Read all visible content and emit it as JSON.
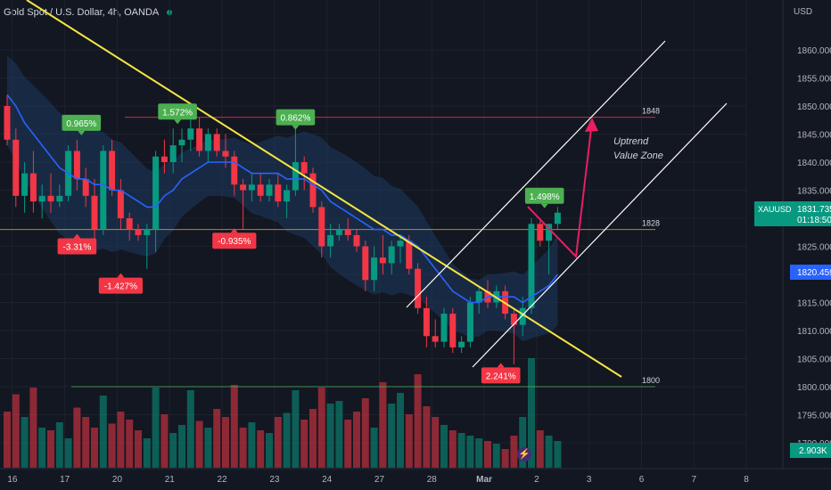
{
  "header": {
    "title": "Gold Spot / U.S. Dollar, 4h, OANDA"
  },
  "colors": {
    "background": "#131722",
    "up": "#089981",
    "down": "#f23645",
    "ma_line": "#2962ff",
    "trendline": "#f5e642",
    "channel": "#ffffff",
    "arrow": "#e91e63",
    "band": "#1e3a5f",
    "grid": "#1e222d",
    "level_orange": "#ff9800",
    "level_red": "#f23645",
    "level_green": "#4caf50"
  },
  "chart_data": {
    "type": "candlestick",
    "title": "Gold Spot / U.S. Dollar, 4h, OANDA",
    "symbol": "XAUUSD",
    "y_axis": {
      "unit": "USD",
      "range": [
        1790,
        1865
      ],
      "ticks": [
        "1860.000",
        "1855.000",
        "1850.000",
        "1845.000",
        "1840.000",
        "1835.000",
        "1830.000",
        "1825.000",
        "1820.000",
        "1815.000",
        "1810.000",
        "1805.000",
        "1800.000",
        "1795.000",
        "1790.000"
      ],
      "tick_values": [
        1860,
        1855,
        1850,
        1845,
        1840,
        1835,
        1830,
        1825,
        1820,
        1815,
        1810,
        1805,
        1800,
        1795,
        1790
      ]
    },
    "x_axis": {
      "range": [
        0,
        148
      ],
      "tick_labels": [
        "16",
        "17",
        "20",
        "21",
        "22",
        "23",
        "24",
        "27",
        "28",
        "Mar",
        "2",
        "3",
        "6",
        "7",
        "8"
      ],
      "tick_positions": [
        0.6,
        6.6,
        12.6,
        18.6,
        24.6,
        30.6,
        36.6,
        42.6,
        48.6,
        54.6,
        60.6,
        66.6,
        72.6,
        78.6,
        84.6
      ]
    },
    "candles": [
      {
        "o": 1850,
        "h": 1852,
        "l": 1843,
        "c": 1844
      },
      {
        "o": 1844,
        "h": 1846,
        "l": 1832,
        "c": 1834
      },
      {
        "o": 1834,
        "h": 1840,
        "l": 1831,
        "c": 1838
      },
      {
        "o": 1838,
        "h": 1842,
        "l": 1831,
        "c": 1833
      },
      {
        "o": 1833,
        "h": 1836,
        "l": 1830,
        "c": 1834
      },
      {
        "o": 1834,
        "h": 1838,
        "l": 1831,
        "c": 1833
      },
      {
        "o": 1833,
        "h": 1836,
        "l": 1832,
        "c": 1834
      },
      {
        "o": 1834,
        "h": 1843,
        "l": 1833,
        "c": 1842
      },
      {
        "o": 1842,
        "h": 1844,
        "l": 1835,
        "c": 1837
      },
      {
        "o": 1837,
        "h": 1839,
        "l": 1832,
        "c": 1834
      },
      {
        "o": 1834,
        "h": 1837,
        "l": 1826,
        "c": 1828
      },
      {
        "o": 1828,
        "h": 1843,
        "l": 1827,
        "c": 1842
      },
      {
        "o": 1842,
        "h": 1844,
        "l": 1834,
        "c": 1835
      },
      {
        "o": 1835,
        "h": 1837,
        "l": 1828,
        "c": 1830
      },
      {
        "o": 1830,
        "h": 1831,
        "l": 1826,
        "c": 1828
      },
      {
        "o": 1828,
        "h": 1829,
        "l": 1826,
        "c": 1827
      },
      {
        "o": 1827,
        "h": 1829,
        "l": 1821,
        "c": 1828
      },
      {
        "o": 1828,
        "h": 1842,
        "l": 1824,
        "c": 1841
      },
      {
        "o": 1841,
        "h": 1844,
        "l": 1838,
        "c": 1840
      },
      {
        "o": 1840,
        "h": 1846,
        "l": 1838,
        "c": 1843
      },
      {
        "o": 1843,
        "h": 1846,
        "l": 1840,
        "c": 1844
      },
      {
        "o": 1844,
        "h": 1849,
        "l": 1842,
        "c": 1846
      },
      {
        "o": 1846,
        "h": 1848,
        "l": 1841,
        "c": 1842
      },
      {
        "o": 1842,
        "h": 1846,
        "l": 1840,
        "c": 1845
      },
      {
        "o": 1845,
        "h": 1846,
        "l": 1841,
        "c": 1842
      },
      {
        "o": 1842,
        "h": 1845,
        "l": 1839,
        "c": 1841
      },
      {
        "o": 1841,
        "h": 1842,
        "l": 1834,
        "c": 1836
      },
      {
        "o": 1836,
        "h": 1837,
        "l": 1828,
        "c": 1835
      },
      {
        "o": 1835,
        "h": 1838,
        "l": 1833,
        "c": 1836
      },
      {
        "o": 1836,
        "h": 1838,
        "l": 1833,
        "c": 1834
      },
      {
        "o": 1834,
        "h": 1837,
        "l": 1833,
        "c": 1836
      },
      {
        "o": 1836,
        "h": 1838,
        "l": 1832,
        "c": 1833
      },
      {
        "o": 1833,
        "h": 1836,
        "l": 1830,
        "c": 1835
      },
      {
        "o": 1835,
        "h": 1846,
        "l": 1834,
        "c": 1840
      },
      {
        "o": 1840,
        "h": 1841,
        "l": 1835,
        "c": 1838
      },
      {
        "o": 1838,
        "h": 1839,
        "l": 1831,
        "c": 1832
      },
      {
        "o": 1832,
        "h": 1833,
        "l": 1823,
        "c": 1825
      },
      {
        "o": 1825,
        "h": 1829,
        "l": 1823,
        "c": 1827
      },
      {
        "o": 1827,
        "h": 1829,
        "l": 1826,
        "c": 1828
      },
      {
        "o": 1828,
        "h": 1830,
        "l": 1826,
        "c": 1827
      },
      {
        "o": 1827,
        "h": 1828,
        "l": 1824,
        "c": 1825
      },
      {
        "o": 1825,
        "h": 1826,
        "l": 1817,
        "c": 1819
      },
      {
        "o": 1819,
        "h": 1825,
        "l": 1817,
        "c": 1823
      },
      {
        "o": 1823,
        "h": 1827,
        "l": 1820,
        "c": 1822
      },
      {
        "o": 1822,
        "h": 1826,
        "l": 1820,
        "c": 1825
      },
      {
        "o": 1825,
        "h": 1827,
        "l": 1822,
        "c": 1826
      },
      {
        "o": 1826,
        "h": 1827,
        "l": 1820,
        "c": 1821
      },
      {
        "o": 1821,
        "h": 1822,
        "l": 1813,
        "c": 1814
      },
      {
        "o": 1814,
        "h": 1816,
        "l": 1807,
        "c": 1809
      },
      {
        "o": 1809,
        "h": 1812,
        "l": 1807,
        "c": 1808
      },
      {
        "o": 1808,
        "h": 1814,
        "l": 1807,
        "c": 1813
      },
      {
        "o": 1813,
        "h": 1814,
        "l": 1806,
        "c": 1807
      },
      {
        "o": 1807,
        "h": 1809,
        "l": 1806,
        "c": 1808
      },
      {
        "o": 1808,
        "h": 1816,
        "l": 1807,
        "c": 1815
      },
      {
        "o": 1815,
        "h": 1818,
        "l": 1813,
        "c": 1817
      },
      {
        "o": 1817,
        "h": 1819,
        "l": 1814,
        "c": 1815
      },
      {
        "o": 1815,
        "h": 1818,
        "l": 1814,
        "c": 1817
      },
      {
        "o": 1817,
        "h": 1818,
        "l": 1812,
        "c": 1813
      },
      {
        "o": 1813,
        "h": 1814,
        "l": 1804,
        "c": 1811
      },
      {
        "o": 1811,
        "h": 1816,
        "l": 1809,
        "c": 1814
      },
      {
        "o": 1814,
        "h": 1830,
        "l": 1813,
        "c": 1829
      },
      {
        "o": 1829,
        "h": 1830,
        "l": 1825,
        "c": 1826
      },
      {
        "o": 1826,
        "h": 1829,
        "l": 1820,
        "c": 1829
      },
      {
        "o": 1829,
        "h": 1832,
        "l": 1828,
        "c": 1831
      }
    ],
    "volumes": [
      42,
      55,
      38,
      60,
      30,
      28,
      34,
      22,
      45,
      38,
      30,
      54,
      33,
      42,
      36,
      28,
      22,
      60,
      40,
      26,
      32,
      58,
      35,
      30,
      44,
      38,
      62,
      30,
      34,
      28,
      26,
      38,
      41,
      58,
      36,
      44,
      60,
      48,
      50,
      36,
      42,
      52,
      30,
      64,
      48,
      56,
      40,
      70,
      46,
      38,
      32,
      28,
      26,
      24,
      22,
      20,
      18,
      14,
      24,
      38,
      82,
      28,
      24,
      20
    ],
    "ma": [
      1852,
      1850,
      1847,
      1845,
      1843,
      1841,
      1839,
      1838,
      1837,
      1837,
      1836,
      1836,
      1835,
      1835,
      1834,
      1833,
      1832,
      1832,
      1834,
      1835,
      1837,
      1838,
      1839,
      1840,
      1840,
      1840,
      1840,
      1839,
      1838,
      1838,
      1838,
      1838,
      1837,
      1837,
      1837,
      1836,
      1835,
      1833,
      1832,
      1831,
      1830,
      1829,
      1828,
      1828,
      1827,
      1827,
      1826,
      1825,
      1823,
      1821,
      1819,
      1817,
      1816,
      1815,
      1815,
      1816,
      1816,
      1816,
      1816,
      1815,
      1816,
      1817,
      1818,
      1820
    ],
    "price_levels": [
      {
        "label": "1848",
        "value": 1848,
        "color": "#f23645"
      },
      {
        "label": "1828",
        "value": 1828,
        "color": "#ff9800"
      },
      {
        "label": "1800",
        "value": 1800,
        "color": "#4caf50"
      }
    ],
    "last_price": {
      "symbol": "XAUUSD",
      "value": "1831.735",
      "countdown": "01:18:50"
    },
    "ma_value": "1820.459",
    "volume_value": "2.903K",
    "annotations": [
      {
        "text": "0.965%",
        "kind": "up",
        "bar": 8.5,
        "y": 1847
      },
      {
        "text": "1.572%",
        "kind": "up",
        "bar": 19.5,
        "y": 1849
      },
      {
        "text": "0.862%",
        "kind": "up",
        "bar": 33,
        "y": 1848
      },
      {
        "text": "1.498%",
        "kind": "up",
        "bar": 61.5,
        "y": 1834
      },
      {
        "text": "-3.31%",
        "kind": "down",
        "bar": 8,
        "y": 1825
      },
      {
        "text": "-1.427%",
        "kind": "down",
        "bar": 13,
        "y": 1818
      },
      {
        "text": "-0.935%",
        "kind": "down",
        "bar": 26,
        "y": 1826
      },
      {
        "text": "2.241%",
        "kind": "down",
        "bar": 56.5,
        "y": 1802
      }
    ],
    "callout": {
      "text": [
        "Uptrend",
        "Value Zone"
      ]
    }
  }
}
